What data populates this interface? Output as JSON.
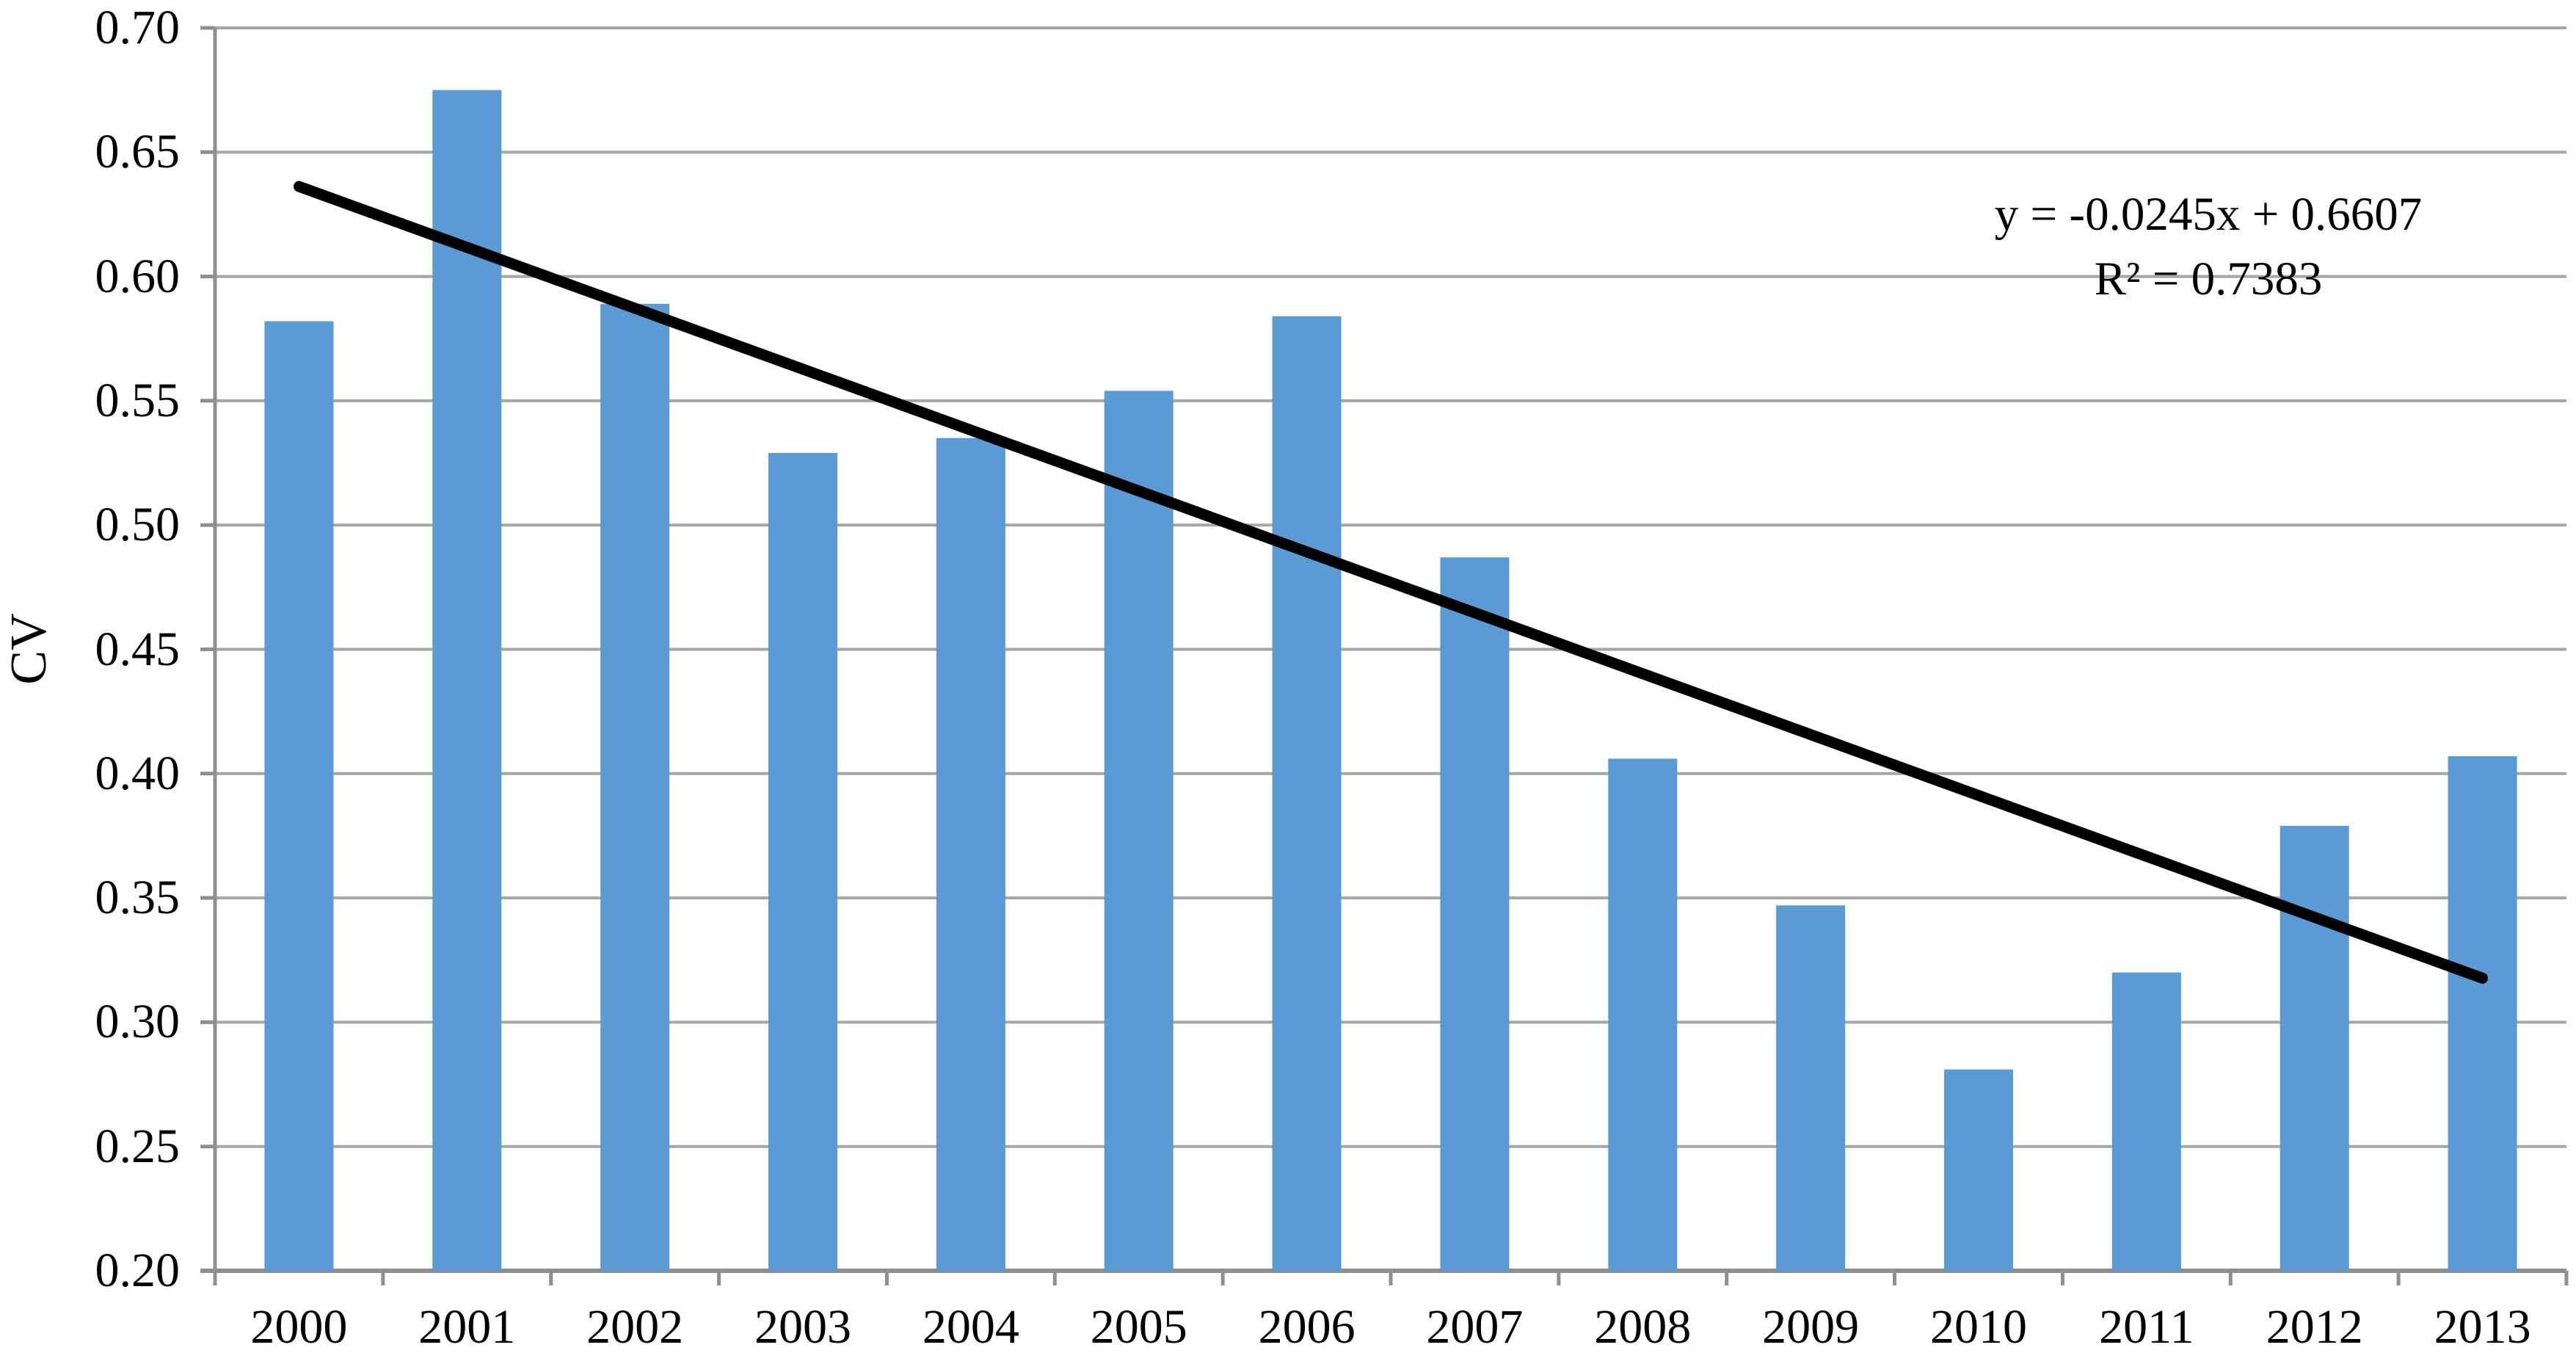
{
  "chart_data": {
    "type": "bar",
    "title": "",
    "xlabel": "",
    "ylabel": "CV",
    "categories": [
      "2000",
      "2001",
      "2002",
      "2003",
      "2004",
      "2005",
      "2006",
      "2007",
      "2008",
      "2009",
      "2010",
      "2011",
      "2012",
      "2013"
    ],
    "values": [
      0.582,
      0.675,
      0.589,
      0.529,
      0.535,
      0.554,
      0.584,
      0.487,
      0.406,
      0.347,
      0.281,
      0.32,
      0.379,
      0.407
    ],
    "ylim": [
      0.2,
      0.7
    ],
    "ytick_step": 0.05,
    "ytick_labels": [
      "0.70",
      "0.65",
      "0.60",
      "0.55",
      "0.50",
      "0.45",
      "0.40",
      "0.35",
      "0.30",
      "0.25",
      "0.20"
    ],
    "grid": true,
    "legend": "none",
    "trendline": {
      "slope": -0.0245,
      "intercept": 0.6607,
      "r2": 0.7383,
      "x_index_start": 1,
      "equation_label": "y = -0.0245x + 0.6607",
      "r2_label": "R² = 0.7383"
    },
    "colors": {
      "bar": "#5B9BD5",
      "trendline": "#000000",
      "gridline": "#A6A6A6",
      "axis": "#8F8F8F",
      "text": "#000000"
    }
  }
}
